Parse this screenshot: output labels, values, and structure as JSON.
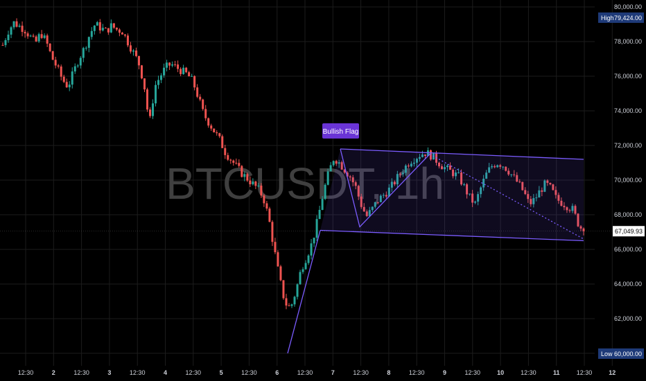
{
  "chart_data": {
    "type": "candlestick",
    "symbol_watermark": "BTCUSDT, 1h",
    "ylim": [
      60000,
      80000
    ],
    "y_ticks": [
      "80,000.00",
      "78,000.00",
      "76,000.00",
      "74,000.00",
      "72,000.00",
      "70,000.00",
      "68,000.00",
      "66,000.00",
      "64,000.00",
      "62,000.00",
      "60,000.00"
    ],
    "x_ticks": [
      "12:30",
      "2",
      "12:30",
      "3",
      "12:30",
      "4",
      "12:30",
      "5",
      "12:30",
      "6",
      "12:30",
      "7",
      "12:30",
      "8",
      "12:30",
      "9",
      "12:30",
      "10",
      "12:30",
      "11",
      "12:30",
      "12"
    ],
    "high": {
      "label": "High",
      "value": "79,424.00"
    },
    "low": {
      "label": "Low",
      "value": "60,000.00"
    },
    "last_price": "67,049.93",
    "annotation": "Bullish Flag",
    "pattern": {
      "pole": [
        [
          "6 06:00",
          60000
        ],
        [
          "7 06:00",
          71800
        ]
      ],
      "channel_upper": [
        [
          "7 06:00",
          71800
        ],
        [
          "11 12:00",
          71200
        ]
      ],
      "channel_lower": [
        [
          "7 00:00",
          67100
        ],
        [
          "11 12:00",
          66500
        ]
      ],
      "flag_path": [
        [
          71800
        ],
        [
          67300
        ],
        [
          71500
        ],
        [
          66600
        ]
      ]
    },
    "close_path": [
      77800,
      78600,
      79100,
      78900,
      78700,
      78300,
      77900,
      78500,
      78000,
      77100,
      76500,
      75800,
      75400,
      76200,
      77000,
      77600,
      78400,
      79000,
      78800,
      78600,
      78900,
      78700,
      78600,
      78000,
      77400,
      76800,
      75600,
      73200,
      75400,
      76000,
      76500,
      76700,
      76500,
      76300,
      76100,
      75700,
      74800,
      73800,
      73300,
      72800,
      72300,
      71600,
      71200,
      70800,
      70400,
      70100,
      69800,
      69500,
      69000,
      67800,
      66000,
      64300,
      62900,
      62600,
      63600,
      64900,
      65600,
      66400,
      67700,
      69200,
      70400,
      71300,
      71000,
      70600,
      70200,
      69600,
      68600,
      67900,
      68300,
      68800,
      69100,
      69400,
      69800,
      70300,
      70700,
      71100,
      71300,
      71500,
      71600,
      71400,
      71100,
      70800,
      70600,
      70400,
      70200,
      69600,
      69000,
      68600,
      69500,
      70300,
      70800,
      71000,
      70900,
      70600,
      70200,
      69800,
      69300,
      68600,
      68900,
      69400,
      69800,
      69500,
      68900,
      68700,
      68500,
      68300,
      67500,
      67000
    ]
  },
  "colors": {
    "up": "#26a69a",
    "down": "#ef5350",
    "pattern": "#7b5cff",
    "label_bg": "#6a34d6",
    "high_low_bg": "#1e3a78",
    "axis_text": "#d1d4dc",
    "grid": "#1c1c1c"
  }
}
